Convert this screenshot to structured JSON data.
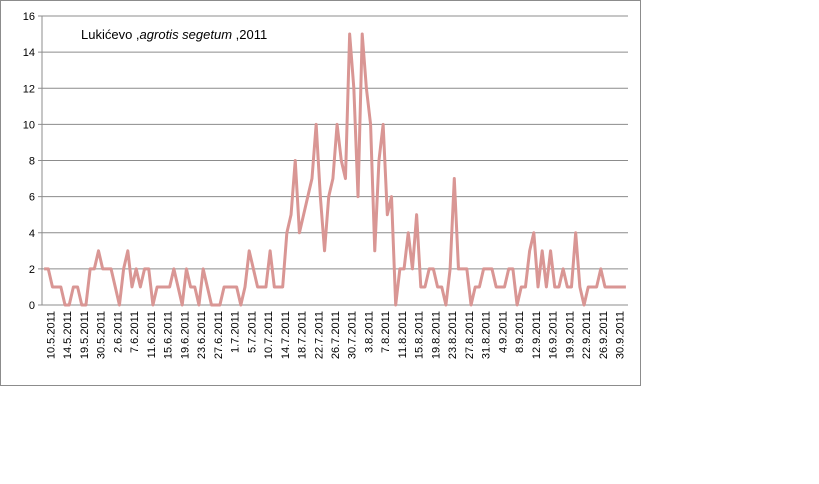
{
  "chart_data": {
    "type": "line",
    "title": "Lukićevo ,agrotis segetum ,2011",
    "title_parts": {
      "place": "Lukićevo ,",
      "species": "agrotis segetum",
      "year": " ,2011"
    },
    "xlabel": "",
    "ylabel": "",
    "ylim": [
      0,
      16
    ],
    "y_ticks": [
      0,
      2,
      4,
      6,
      8,
      10,
      12,
      14,
      16
    ],
    "grid": true,
    "legend": "none",
    "line_color": "#d99694",
    "x_tick_labels": [
      "10.5.2011",
      "14.5.2011",
      "19.5.2011",
      "30.5.2011",
      "2.6.2011",
      "7.6.2011",
      "11.6.2011",
      "15.6.2011",
      "19.6.2011",
      "23.6.2011",
      "27.6.2011",
      "1.7.2011",
      "5.7.2011",
      "10.7.2011",
      "14.7.2011",
      "18.7.2011",
      "22.7.2011",
      "26.7.2011",
      "30.7.2011",
      "3.8.2011",
      "7.8.2011",
      "11.8.2011",
      "15.8.2011",
      "19.8.2011",
      "23.8.2011",
      "27.8.2011",
      "31.8.2011",
      "4.9.2011",
      "8.9.2011",
      "12.9.2011",
      "16.9.2011",
      "19.9.2011",
      "22.9.2011",
      "26.9.2011",
      "30.9.2011"
    ],
    "values": [
      2,
      2,
      1,
      1,
      1,
      0,
      0,
      1,
      1,
      0,
      0,
      2,
      2,
      3,
      2,
      2,
      2,
      1,
      0,
      2,
      3,
      1,
      2,
      1,
      2,
      2,
      0,
      1,
      1,
      1,
      1,
      2,
      1,
      0,
      2,
      1,
      1,
      0,
      2,
      1,
      0,
      0,
      0,
      1,
      1,
      1,
      1,
      0,
      1,
      3,
      2,
      1,
      1,
      1,
      3,
      1,
      1,
      1,
      4,
      5,
      8,
      4,
      5,
      6,
      7,
      10,
      6,
      3,
      6,
      7,
      10,
      8,
      7,
      15,
      12,
      6,
      15,
      12,
      10,
      3,
      8,
      10,
      5,
      6,
      0,
      2,
      2,
      4,
      2,
      5,
      1,
      1,
      2,
      2,
      1,
      1,
      0,
      2,
      7,
      2,
      2,
      2,
      0,
      1,
      1,
      2,
      2,
      2,
      1,
      1,
      1,
      2,
      2,
      0,
      1,
      1,
      3,
      4,
      1,
      3,
      1,
      3,
      1,
      1,
      2,
      1,
      1,
      4,
      1,
      0,
      1,
      1,
      1,
      2,
      1,
      1,
      1,
      1,
      1,
      1
    ]
  }
}
